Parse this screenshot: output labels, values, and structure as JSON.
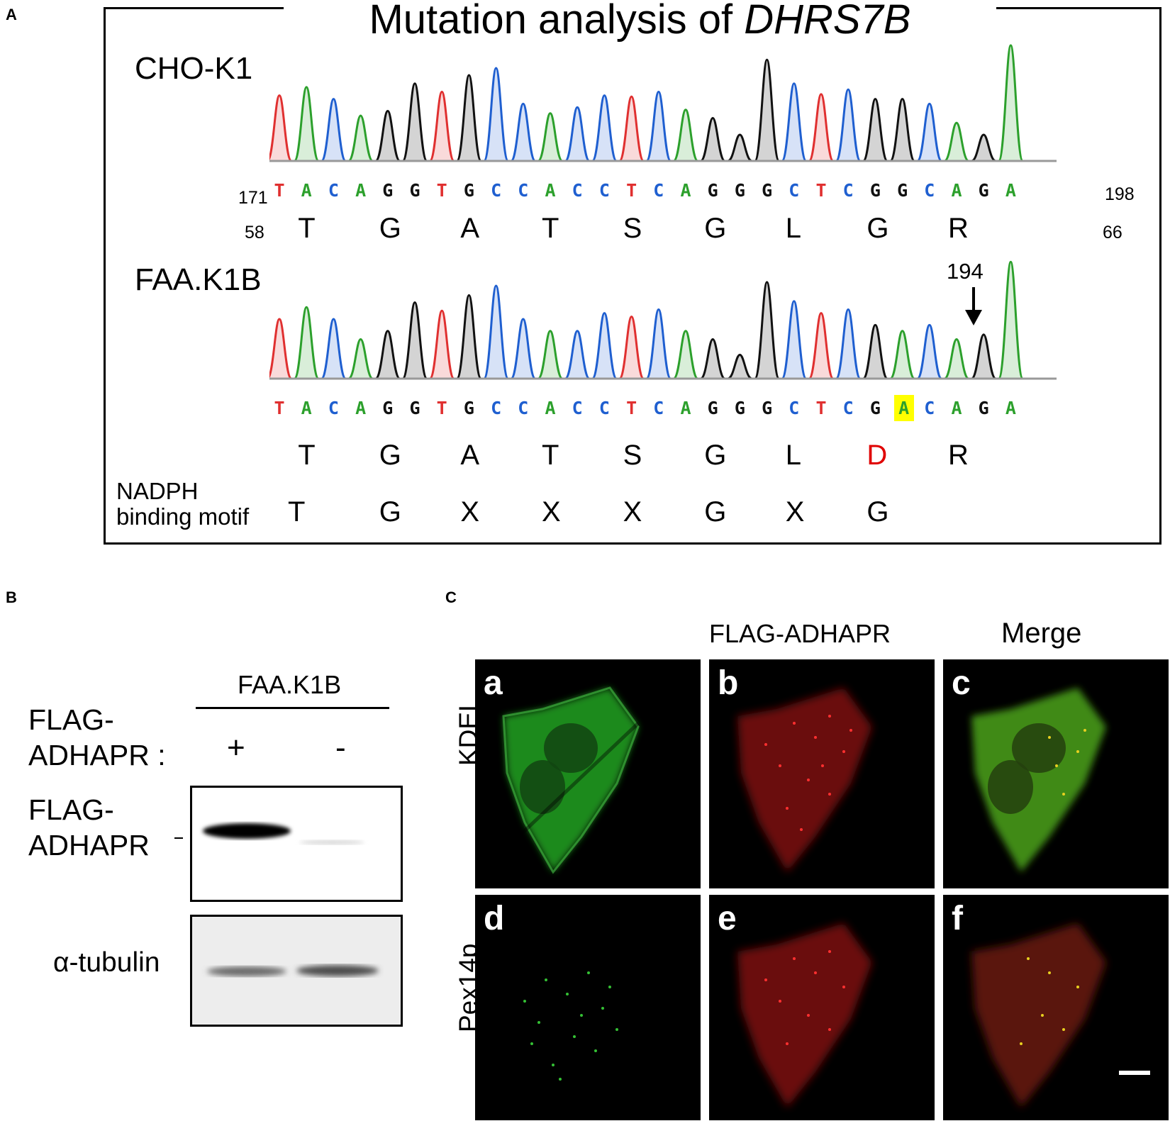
{
  "panel_labels": {
    "a": "A",
    "b": "B",
    "c": "C"
  },
  "panelA": {
    "title_prefix": "Mutation analysis of ",
    "title_gene": "DHRS7B",
    "wt": {
      "label": "CHO-K1",
      "sequence": "TACAGGTGCCACCTCAGGGCTCGGCAGA",
      "start_num": "171",
      "end_num": "198",
      "aa_start": "58",
      "aa_end": "66",
      "amino_acids": [
        "T",
        "G",
        "A",
        "T",
        "S",
        "G",
        "L",
        "G",
        "R"
      ]
    },
    "mut": {
      "label": "FAA.K1B",
      "sequence": "TACAGGTGCCACCTCAGGGCTCGACAGA",
      "mutation_position": "194",
      "highlight_index": 23,
      "amino_acids": [
        "T",
        "G",
        "A",
        "T",
        "S",
        "G",
        "L",
        "D",
        "R"
      ],
      "mutant_aa_index": 7
    },
    "motif": {
      "label_line1": "NADPH",
      "label_line2": "binding motif",
      "letters": [
        "T",
        "G",
        "X",
        "X",
        "X",
        "G",
        "X",
        "G"
      ]
    },
    "base_colors": {
      "A": "#2ca02c",
      "C": "#1f5fd0",
      "G": "#111111",
      "T": "#e03030"
    },
    "highlight_color": "#ffff00",
    "mutant_color": "#e00000"
  },
  "panelB": {
    "group_label": "FAA.K1B",
    "lane_label_1": "FLAG-",
    "lane_label_2": "ADHAPR :",
    "lanes": [
      "+",
      "-"
    ],
    "band1_label_1": "FLAG-",
    "band1_label_2": "ADHAPR",
    "band2_label": "α-tubulin"
  },
  "panelC": {
    "col_headers": [
      "FLAG-ADHAPR",
      "Merge"
    ],
    "row_labels": [
      "KDEL",
      "Pex14p"
    ],
    "panels": [
      "a",
      "b",
      "c",
      "d",
      "e",
      "f"
    ]
  }
}
